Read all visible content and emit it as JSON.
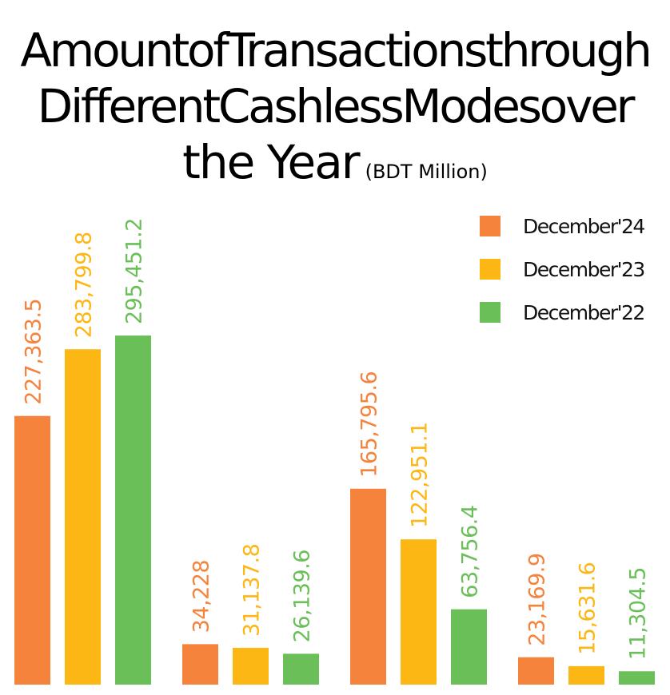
{
  "chart_data": {
    "type": "bar",
    "title_lines": [
      "AmountofTransactionsthrough",
      "DifferentCashlessModesover",
      "the Year"
    ],
    "subtitle": "(BDT Million)",
    "categories": [
      "",
      "",
      "",
      ""
    ],
    "series": [
      {
        "name": "December'24",
        "color": "#F5833C",
        "values": [
          227363.5,
          34228,
          165795.6,
          23169.9
        ],
        "labels": [
          "227,363.5",
          "34,228",
          "165,795.6",
          "23,169.9"
        ]
      },
      {
        "name": "December'23",
        "color": "#FDB714",
        "values": [
          283799.8,
          31137.8,
          122951.1,
          15631.6
        ],
        "labels": [
          "283,799.8",
          "31,137.8",
          "122,951.1",
          "15,631.6"
        ]
      },
      {
        "name": "December'22",
        "color": "#6ABF59",
        "values": [
          295451.2,
          26139.6,
          63756.4,
          11304.5
        ],
        "labels": [
          "295,451.2",
          "26,139.6",
          "63,756.4",
          "11,304.5"
        ]
      }
    ],
    "ylim": [
      0,
      295451.2
    ],
    "grid": false,
    "legend_position": "top-right"
  }
}
